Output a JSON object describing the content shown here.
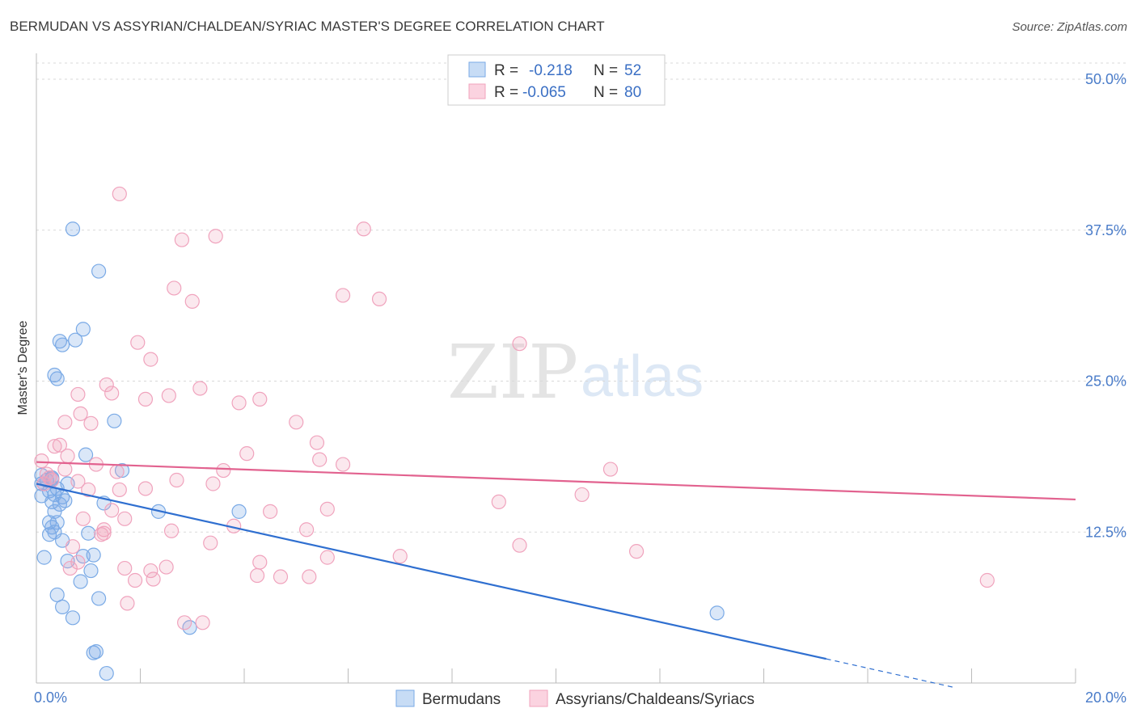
{
  "header": {
    "title": "BERMUDAN VS ASSYRIAN/CHALDEAN/SYRIAC MASTER'S DEGREE CORRELATION CHART",
    "source": "Source: ZipAtlas.com"
  },
  "watermark": {
    "zip": "ZIP",
    "atlas": "atlas"
  },
  "legend_box": {
    "rows": [
      {
        "r_label": "R =",
        "r_value": "-0.218",
        "n_label": "N =",
        "n_value": "52",
        "color": "#7aaae6"
      },
      {
        "r_label": "R =",
        "r_value": "-0.065",
        "n_label": "N =",
        "n_value": "80",
        "color": "#f0a3bd"
      }
    ]
  },
  "bottom_legend": {
    "items": [
      {
        "label": "Bermudans",
        "color": "#7aaae6"
      },
      {
        "label": "Assyrians/Chaldeans/Syriacs",
        "color": "#f0a3bd"
      }
    ]
  },
  "chart_data": {
    "type": "scatter",
    "title": "BERMUDAN VS ASSYRIAN/CHALDEAN/SYRIAC MASTER'S DEGREE CORRELATION CHART",
    "xlabel": "",
    "ylabel": "Master's Degree",
    "xlim": [
      0,
      20
    ],
    "ylim": [
      0,
      50
    ],
    "x_tick_labels": [
      "0.0%",
      "20.0%"
    ],
    "y_ticks": [
      12.5,
      25.0,
      37.5,
      50.0
    ],
    "y_tick_labels": [
      "12.5%",
      "25.0%",
      "37.5%",
      "50.0%"
    ],
    "series": [
      {
        "name": "Bermudans",
        "color": "#7aaae6",
        "line_color": "#2f6fd0",
        "trend": {
          "x0": 0,
          "y0": 16.5,
          "x1": 15.2,
          "y1": 2.0,
          "dash_x1": 17.7,
          "dash_y1": -0.4
        },
        "points": [
          [
            0.1,
            17.2
          ],
          [
            0.2,
            16.8
          ],
          [
            0.15,
            16.5
          ],
          [
            0.3,
            16.9
          ],
          [
            0.1,
            15.5
          ],
          [
            0.25,
            15.9
          ],
          [
            0.4,
            16.1
          ],
          [
            0.35,
            15.6
          ],
          [
            0.5,
            15.4
          ],
          [
            0.55,
            15.1
          ],
          [
            0.3,
            15.0
          ],
          [
            0.45,
            14.8
          ],
          [
            0.35,
            14.2
          ],
          [
            0.25,
            13.3
          ],
          [
            0.4,
            13.3
          ],
          [
            0.3,
            12.9
          ],
          [
            0.25,
            12.3
          ],
          [
            0.5,
            11.8
          ],
          [
            0.15,
            10.4
          ],
          [
            0.6,
            10.1
          ],
          [
            0.9,
            10.5
          ],
          [
            1.1,
            10.6
          ],
          [
            0.85,
            8.4
          ],
          [
            1.05,
            9.3
          ],
          [
            0.4,
            7.3
          ],
          [
            0.5,
            6.3
          ],
          [
            0.7,
            5.4
          ],
          [
            1.2,
            7.0
          ],
          [
            1.15,
            2.6
          ],
          [
            1.1,
            2.5
          ],
          [
            1.35,
            0.8
          ],
          [
            0.7,
            37.6
          ],
          [
            1.2,
            34.1
          ],
          [
            0.45,
            28.3
          ],
          [
            0.5,
            28.0
          ],
          [
            0.75,
            28.4
          ],
          [
            0.9,
            29.3
          ],
          [
            0.35,
            25.5
          ],
          [
            0.4,
            25.2
          ],
          [
            1.5,
            21.7
          ],
          [
            0.95,
            18.9
          ],
          [
            1.65,
            17.6
          ],
          [
            1.3,
            14.9
          ],
          [
            1.0,
            12.4
          ],
          [
            2.35,
            14.2
          ],
          [
            3.9,
            14.2
          ],
          [
            2.95,
            4.6
          ],
          [
            13.1,
            5.8
          ],
          [
            0.3,
            17.0
          ],
          [
            0.1,
            16.5
          ],
          [
            0.35,
            12.5
          ],
          [
            0.6,
            16.5
          ]
        ]
      },
      {
        "name": "Assyrians/Chaldeans/Syriacs",
        "color": "#f0a3bd",
        "line_color": "#e2628f",
        "trend": {
          "x0": 0,
          "y0": 18.3,
          "x1": 20,
          "y1": 15.2
        },
        "points": [
          [
            0.1,
            18.4
          ],
          [
            0.2,
            17.3
          ],
          [
            0.3,
            16.8
          ],
          [
            0.15,
            16.5
          ],
          [
            0.35,
            19.6
          ],
          [
            0.45,
            19.7
          ],
          [
            0.6,
            18.8
          ],
          [
            0.55,
            17.7
          ],
          [
            0.25,
            17.0
          ],
          [
            0.8,
            16.7
          ],
          [
            1.0,
            16.0
          ],
          [
            1.6,
            16.0
          ],
          [
            2.1,
            16.1
          ],
          [
            1.15,
            18.1
          ],
          [
            1.55,
            17.5
          ],
          [
            1.7,
            13.6
          ],
          [
            1.45,
            14.3
          ],
          [
            0.9,
            13.6
          ],
          [
            1.3,
            12.7
          ],
          [
            1.25,
            12.3
          ],
          [
            1.3,
            12.4
          ],
          [
            0.7,
            11.3
          ],
          [
            0.8,
            10.0
          ],
          [
            0.65,
            9.5
          ],
          [
            1.7,
            9.5
          ],
          [
            1.9,
            8.5
          ],
          [
            2.2,
            9.3
          ],
          [
            2.25,
            8.6
          ],
          [
            2.5,
            9.6
          ],
          [
            2.6,
            12.6
          ],
          [
            1.75,
            6.6
          ],
          [
            2.85,
            5.0
          ],
          [
            3.2,
            5.0
          ],
          [
            3.35,
            11.6
          ],
          [
            2.7,
            16.8
          ],
          [
            3.4,
            16.5
          ],
          [
            3.6,
            17.6
          ],
          [
            3.8,
            13.0
          ],
          [
            4.05,
            19.0
          ],
          [
            4.3,
            10.0
          ],
          [
            4.25,
            8.9
          ],
          [
            4.5,
            14.2
          ],
          [
            4.7,
            8.8
          ],
          [
            5.2,
            12.7
          ],
          [
            5.25,
            8.8
          ],
          [
            5.6,
            10.4
          ],
          [
            5.6,
            14.4
          ],
          [
            5.9,
            18.1
          ],
          [
            5.45,
            18.5
          ],
          [
            5.4,
            19.9
          ],
          [
            1.6,
            40.5
          ],
          [
            3.45,
            37.0
          ],
          [
            2.8,
            36.7
          ],
          [
            6.3,
            37.6
          ],
          [
            3.0,
            31.6
          ],
          [
            2.65,
            32.7
          ],
          [
            5.9,
            32.1
          ],
          [
            6.6,
            31.8
          ],
          [
            1.95,
            28.2
          ],
          [
            2.2,
            26.8
          ],
          [
            2.55,
            23.8
          ],
          [
            3.15,
            24.4
          ],
          [
            2.1,
            23.5
          ],
          [
            1.45,
            24.0
          ],
          [
            1.35,
            24.7
          ],
          [
            0.8,
            23.9
          ],
          [
            0.85,
            22.3
          ],
          [
            0.55,
            21.6
          ],
          [
            1.05,
            21.5
          ],
          [
            3.9,
            23.2
          ],
          [
            4.3,
            23.5
          ],
          [
            5.0,
            21.6
          ],
          [
            9.3,
            28.1
          ],
          [
            8.9,
            15.0
          ],
          [
            10.5,
            15.6
          ],
          [
            11.05,
            17.7
          ],
          [
            9.3,
            11.4
          ],
          [
            11.55,
            10.9
          ],
          [
            7.0,
            10.5
          ],
          [
            18.3,
            8.5
          ]
        ]
      }
    ]
  }
}
